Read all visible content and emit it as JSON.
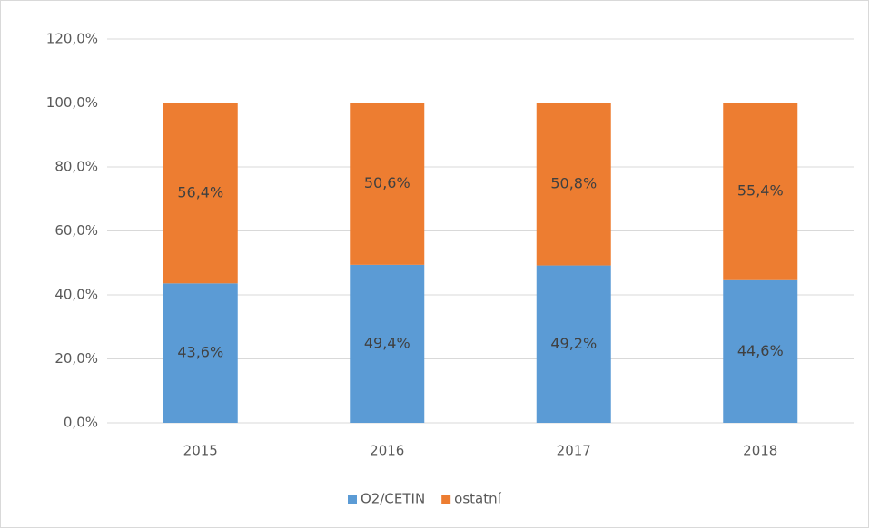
{
  "chart_data": {
    "type": "stacked_bar",
    "categories": [
      "2015",
      "2016",
      "2017",
      "2018"
    ],
    "series": [
      {
        "name": "O2/CETIN",
        "color": "#5b9bd5",
        "values": [
          43.6,
          49.4,
          49.2,
          44.6
        ],
        "value_labels": [
          "43,6%",
          "49,4%",
          "49,2%",
          "44,6%"
        ]
      },
      {
        "name": "ostatní",
        "color": "#ed7d31",
        "values": [
          56.4,
          50.6,
          50.8,
          55.4
        ],
        "value_labels": [
          "56,4%",
          "50,6%",
          "50,8%",
          "55,4%"
        ]
      }
    ],
    "ylim": [
      0,
      120
    ],
    "yticks": [
      {
        "value": 0,
        "label": "0,0%"
      },
      {
        "value": 20,
        "label": "20,0%"
      },
      {
        "value": 40,
        "label": "40,0%"
      },
      {
        "value": 60,
        "label": "60,0%"
      },
      {
        "value": 80,
        "label": "80,0%"
      },
      {
        "value": 100,
        "label": "100,0%"
      },
      {
        "value": 120,
        "label": "120,0%"
      }
    ],
    "grid": true,
    "legend": "bottom"
  }
}
